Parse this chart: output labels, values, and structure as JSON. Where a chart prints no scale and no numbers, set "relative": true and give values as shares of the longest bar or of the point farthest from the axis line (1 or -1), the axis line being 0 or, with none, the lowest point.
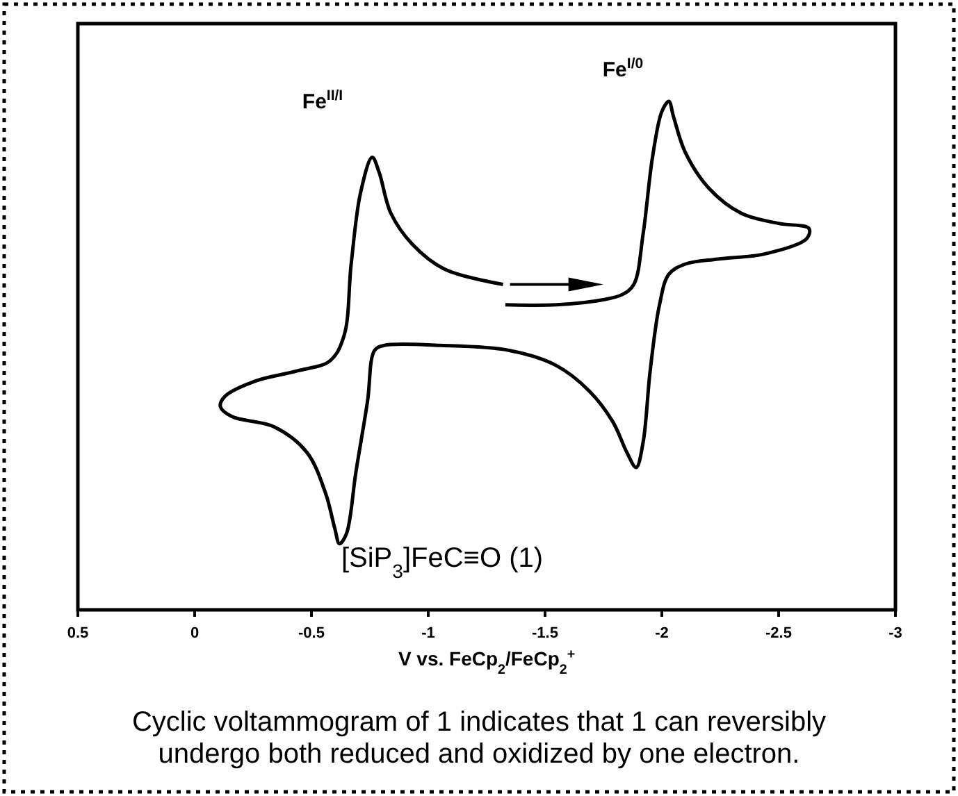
{
  "chart_data": {
    "type": "line",
    "relative": true,
    "xlabel": "V vs. FeCp$_{2}$/FeCp$_{2}$$^{+}$",
    "xlim": [
      0.5,
      -3
    ],
    "xticks": [
      0.5,
      0,
      -0.5,
      -1,
      -1.5,
      -2,
      -2.5,
      -3
    ],
    "grid": false,
    "marker": "none",
    "line_style": "solid",
    "series": [
      {
        "color": "#000000",
        "x": [
          -1.33,
          -1.55,
          -1.75,
          -1.83,
          -1.88,
          -1.92,
          -1.96,
          -2.0,
          -2.03,
          -2.05,
          -2.1,
          -2.2,
          -2.34,
          -2.5,
          -2.63,
          -2.62,
          -2.44,
          -2.24,
          -2.1,
          -2.03,
          -1.99,
          -1.95,
          -1.92,
          -1.89,
          -1.85,
          -1.79,
          -1.69,
          -1.55,
          -1.35,
          -1.05,
          -0.81,
          -0.77,
          -0.74,
          -0.69,
          -0.65,
          -0.62,
          -0.6,
          -0.56,
          -0.48,
          -0.34,
          -0.16,
          -0.11,
          -0.13,
          -0.26,
          -0.44,
          -0.58,
          -0.64,
          -0.67,
          -0.71,
          -0.76,
          -0.79,
          -0.84,
          -0.93,
          -1.07,
          -1.32
        ],
        "values": [
          0.6,
          0.6,
          0.61,
          0.62,
          0.64,
          0.74,
          0.89,
          0.98,
          1,
          0.97,
          0.9,
          0.83,
          0.78,
          0.76,
          0.75,
          0.73,
          0.7,
          0.69,
          0.68,
          0.66,
          0.6,
          0.47,
          0.33,
          0.28,
          0.31,
          0.37,
          0.43,
          0.48,
          0.51,
          0.52,
          0.52,
          0.51,
          0.41,
          0.27,
          0.15,
          0.13,
          0.16,
          0.23,
          0.31,
          0.36,
          0.38,
          0.4,
          0.42,
          0.45,
          0.47,
          0.49,
          0.54,
          0.68,
          0.82,
          0.89,
          0.86,
          0.78,
          0.72,
          0.67,
          0.64
        ]
      }
    ],
    "annotations": [
      "Fe$^{II/I}$",
      "Fe$^{I/0}$",
      "[SiP$_{3}$]FeC≡O (1)",
      "Cyclic voltammogram of 1 indicates that 1 can reversibly undergo both reduced and oxidized by one electron."
    ]
  }
}
